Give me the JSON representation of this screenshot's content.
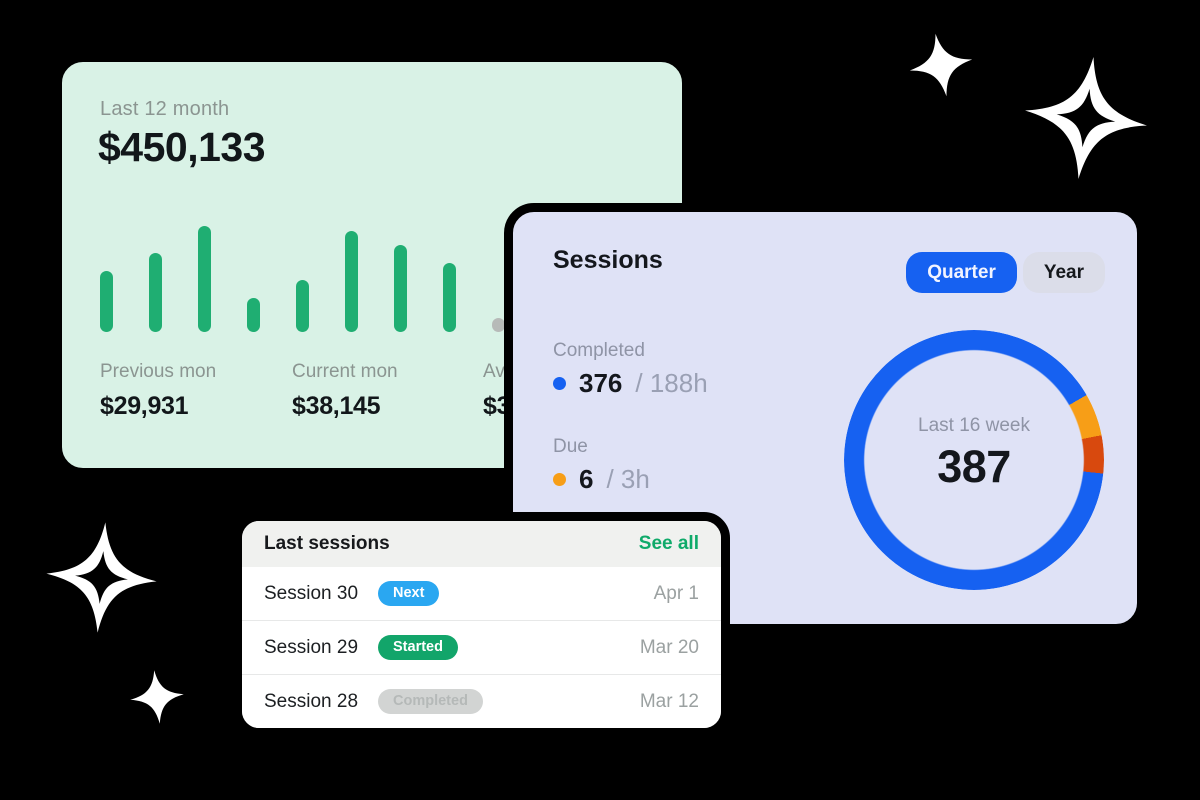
{
  "colors": {
    "background": "#000000",
    "revenue_card_bg": "#d9f2e6",
    "sessions_card_bg": "#dfe2f6",
    "list_card_bg": "#ffffff",
    "list_header_bg": "#f0f1ef",
    "bar_green": "#1fae72",
    "bar_gray_dot": "#b7bab8",
    "accent_blue": "#1661f1",
    "accent_sky": "#2aa7f1",
    "accent_orange": "#f79e17",
    "accent_red_orange": "#d8490e",
    "see_all_green": "#0faa6a",
    "gray_text": "#8b9591",
    "dark_text": "#14171d"
  },
  "revenue_card": {
    "period_label": "Last 12 month",
    "total": "$450,133",
    "stats": [
      {
        "label": "Previous mon",
        "value": "$29,931"
      },
      {
        "label": "Current mon",
        "value": "$38,145"
      },
      {
        "label": "Av",
        "value": "$3"
      }
    ]
  },
  "sessions_card": {
    "title": "Sessions",
    "toggle": {
      "quarter_label": "Quarter",
      "year_label": "Year",
      "active": "Quarter"
    },
    "completed": {
      "label": "Completed",
      "count": "376",
      "hours": "/ 188h",
      "dot_color": "#1661f1"
    },
    "due": {
      "label": "Due",
      "count": "6",
      "hours": "/ 3h",
      "dot_color": "#f79e17"
    },
    "donut": {
      "center_label": "Last 16 week",
      "center_value": "387",
      "segments": [
        {
          "color": "#1661f1",
          "from": 0,
          "to": 60
        },
        {
          "color": "#f79e17",
          "from": 60,
          "to": 79
        },
        {
          "color": "#d8490e",
          "from": 79,
          "to": 96
        },
        {
          "color": "#1661f1",
          "from": 96,
          "to": 360
        }
      ]
    }
  },
  "last_sessions_card": {
    "title": "Last sessions",
    "see_all_label": "See all",
    "rows": [
      {
        "name": "Session 30",
        "badge": "Next",
        "badge_bg": "#2aa7f1",
        "badge_color": "#ffffff",
        "date": "Apr 1"
      },
      {
        "name": "Session 29",
        "badge": "Started",
        "badge_bg": "#12a56a",
        "badge_color": "#ffffff",
        "date": "Mar 20"
      },
      {
        "name": "Session 28",
        "badge": "Completed",
        "badge_bg": "#d2d4d3",
        "badge_color": "#b5b9b8",
        "date": "Mar 12"
      }
    ]
  },
  "chart_data": [
    {
      "type": "bar",
      "title": "Last 12 month",
      "values": [
        61,
        79,
        106,
        34,
        52,
        101,
        87,
        69,
        14
      ],
      "bars": [
        {
          "h": 61,
          "color": "#1fae72"
        },
        {
          "h": 79,
          "color": "#1fae72"
        },
        {
          "h": 106,
          "color": "#1fae72"
        },
        {
          "h": 34,
          "color": "#1fae72"
        },
        {
          "h": 52,
          "color": "#1fae72"
        },
        {
          "h": 101,
          "color": "#1fae72"
        },
        {
          "h": 87,
          "color": "#1fae72"
        },
        {
          "h": 69,
          "color": "#1fae72"
        },
        {
          "h": 14,
          "color": "#b7bab8"
        }
      ],
      "xlabel": "",
      "ylabel": "",
      "note": "unlabeled mini bar chart, values are relative pixel heights"
    },
    {
      "type": "pie",
      "title": "Sessions donut",
      "center_label": "Last 16 week",
      "center_value": 387,
      "legend": [
        {
          "label": "Completed",
          "value": 376,
          "hours": "188h",
          "color": "#1661f1"
        },
        {
          "label": "Due",
          "value": 6,
          "hours": "3h",
          "color": "#f79e17"
        }
      ],
      "segments_deg": [
        {
          "color": "#1661f1",
          "deg": 324
        },
        {
          "color": "#f79e17",
          "deg": 19
        },
        {
          "color": "#d8490e",
          "deg": 17
        }
      ],
      "legend_position": "left"
    }
  ]
}
